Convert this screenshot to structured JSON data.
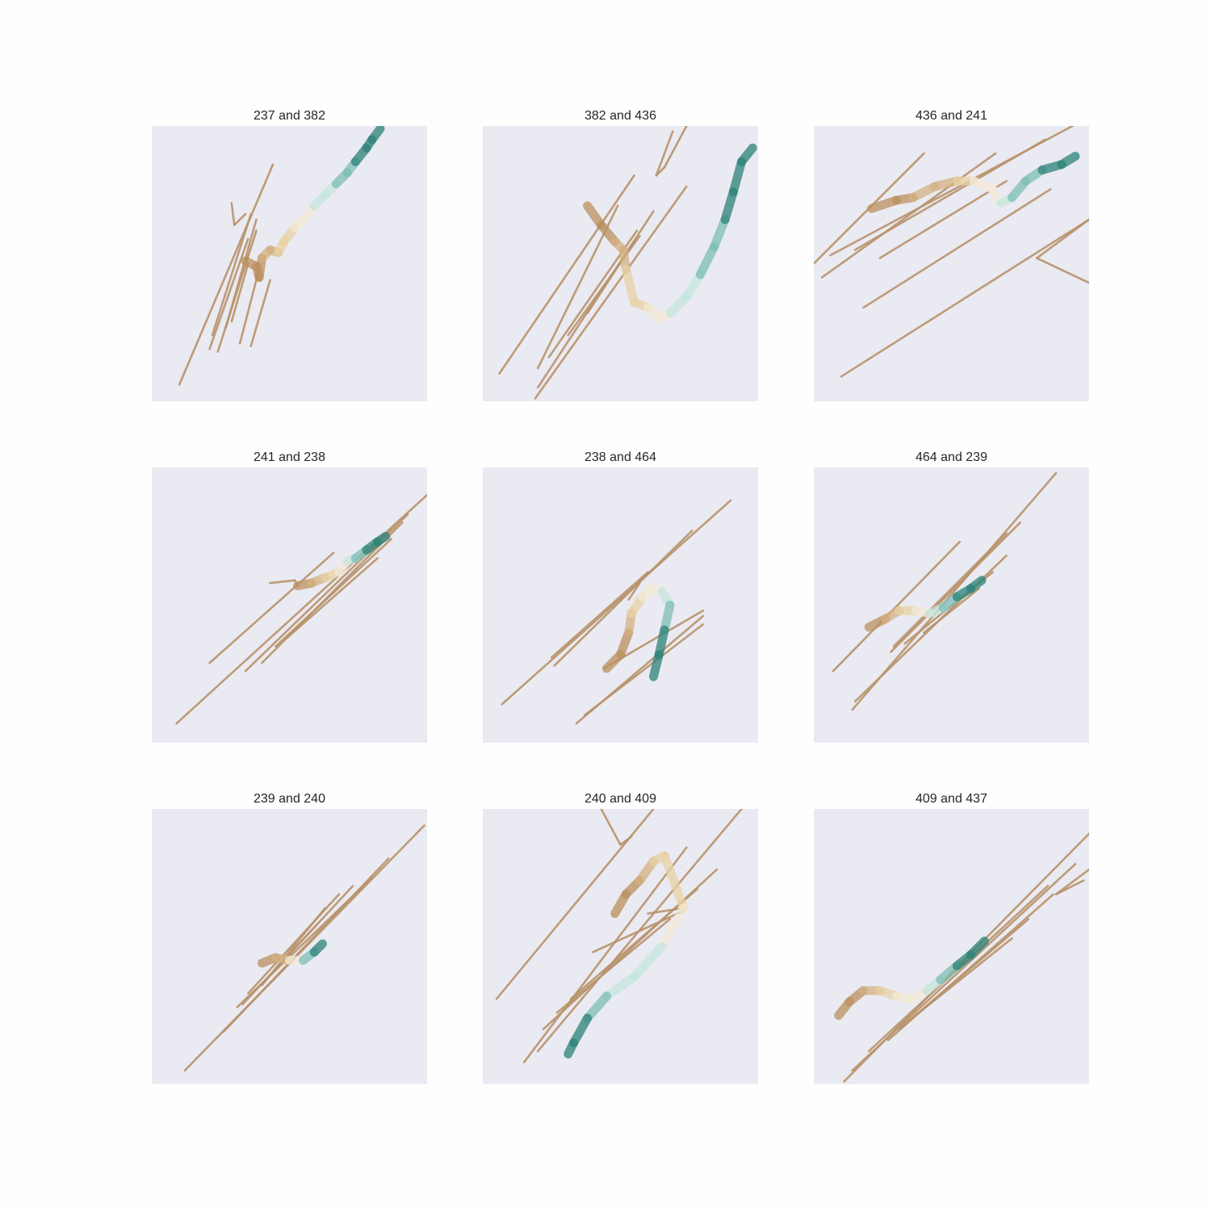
{
  "figure": {
    "background": "#fefefe",
    "panel_background": "#eaeaf2",
    "palette": {
      "outlier_line": "#b8926a",
      "brown": "#bb8f5d",
      "tan": "#d3b082",
      "sand": "#e8d1a4",
      "cream": "#f4ead8",
      "pale_teal": "#c4e6dd",
      "teal": "#7cbeb4",
      "dark_teal": "#2c8177"
    }
  },
  "chart_data": [
    {
      "type": "line",
      "title": "237 and 382",
      "grid": false,
      "xlim": [
        0,
        1
      ],
      "ylim": [
        0,
        1
      ],
      "outlier_segments": [
        [
          [
            0.1,
            0.06
          ],
          [
            0.44,
            0.86
          ]
        ],
        [
          [
            0.21,
            0.19
          ],
          [
            0.35,
            0.59
          ]
        ],
        [
          [
            0.24,
            0.18
          ],
          [
            0.38,
            0.62
          ]
        ],
        [
          [
            0.22,
            0.24
          ],
          [
            0.36,
            0.68
          ]
        ],
        [
          [
            0.27,
            0.27
          ],
          [
            0.38,
            0.66
          ]
        ],
        [
          [
            0.29,
            0.29
          ],
          [
            0.35,
            0.5
          ]
        ],
        [
          [
            0.32,
            0.21
          ],
          [
            0.39,
            0.48
          ]
        ],
        [
          [
            0.36,
            0.2
          ],
          [
            0.43,
            0.44
          ]
        ],
        [
          [
            0.29,
            0.72
          ],
          [
            0.3,
            0.64
          ]
        ],
        [
          [
            0.3,
            0.64
          ],
          [
            0.34,
            0.68
          ]
        ]
      ],
      "trajectory": [
        [
          0.34,
          0.51
        ],
        [
          0.38,
          0.49
        ],
        [
          0.39,
          0.45
        ],
        [
          0.4,
          0.52
        ],
        [
          0.43,
          0.55
        ],
        [
          0.46,
          0.54
        ],
        [
          0.48,
          0.58
        ],
        [
          0.52,
          0.63
        ],
        [
          0.55,
          0.66
        ],
        [
          0.59,
          0.71
        ],
        [
          0.63,
          0.75
        ],
        [
          0.67,
          0.79
        ],
        [
          0.71,
          0.83
        ],
        [
          0.74,
          0.87
        ],
        [
          0.78,
          0.92
        ],
        [
          0.8,
          0.95
        ],
        [
          0.83,
          0.99
        ]
      ]
    },
    {
      "type": "line",
      "title": "382 and 436",
      "grid": false,
      "xlim": [
        0,
        1
      ],
      "ylim": [
        0,
        1
      ],
      "outlier_segments": [
        [
          [
            0.06,
            0.1
          ],
          [
            0.55,
            0.82
          ]
        ],
        [
          [
            0.19,
            0.01
          ],
          [
            0.74,
            0.78
          ]
        ],
        [
          [
            0.2,
            0.05
          ],
          [
            0.62,
            0.69
          ]
        ],
        [
          [
            0.24,
            0.16
          ],
          [
            0.56,
            0.62
          ]
        ],
        [
          [
            0.31,
            0.24
          ],
          [
            0.57,
            0.6
          ]
        ],
        [
          [
            0.38,
            0.32
          ],
          [
            0.55,
            0.58
          ]
        ],
        [
          [
            0.63,
            0.82
          ],
          [
            0.69,
            0.98
          ]
        ],
        [
          [
            0.63,
            0.82
          ],
          [
            0.66,
            0.85
          ]
        ],
        [
          [
            0.66,
            0.85
          ],
          [
            0.74,
            1.0
          ]
        ],
        [
          [
            0.2,
            0.12
          ],
          [
            0.49,
            0.71
          ]
        ]
      ],
      "trajectory": [
        [
          0.38,
          0.71
        ],
        [
          0.43,
          0.64
        ],
        [
          0.48,
          0.58
        ],
        [
          0.51,
          0.55
        ],
        [
          0.52,
          0.48
        ],
        [
          0.55,
          0.36
        ],
        [
          0.6,
          0.34
        ],
        [
          0.64,
          0.3
        ],
        [
          0.68,
          0.32
        ],
        [
          0.74,
          0.38
        ],
        [
          0.79,
          0.46
        ],
        [
          0.84,
          0.56
        ],
        [
          0.88,
          0.66
        ],
        [
          0.91,
          0.76
        ],
        [
          0.94,
          0.87
        ],
        [
          0.98,
          0.92
        ]
      ]
    },
    {
      "type": "line",
      "title": "436 and 241",
      "grid": false,
      "xlim": [
        0,
        1
      ],
      "ylim": [
        0,
        1
      ],
      "outlier_segments": [
        [
          [
            0.0,
            0.5
          ],
          [
            0.4,
            0.9
          ]
        ],
        [
          [
            0.03,
            0.45
          ],
          [
            0.66,
            0.9
          ]
        ],
        [
          [
            0.1,
            0.09
          ],
          [
            1.0,
            0.66
          ]
        ],
        [
          [
            0.18,
            0.34
          ],
          [
            0.86,
            0.77
          ]
        ],
        [
          [
            0.81,
            0.52
          ],
          [
            1.0,
            0.43
          ]
        ],
        [
          [
            0.81,
            0.52
          ],
          [
            1.0,
            0.66
          ]
        ],
        [
          [
            0.15,
            0.55
          ],
          [
            0.84,
            0.95
          ]
        ],
        [
          [
            0.24,
            0.52
          ],
          [
            0.7,
            0.8
          ]
        ],
        [
          [
            0.06,
            0.53
          ],
          [
            0.94,
            1.0
          ]
        ]
      ],
      "trajectory": [
        [
          0.21,
          0.7
        ],
        [
          0.3,
          0.73
        ],
        [
          0.36,
          0.74
        ],
        [
          0.44,
          0.78
        ],
        [
          0.52,
          0.8
        ],
        [
          0.58,
          0.8
        ],
        [
          0.65,
          0.77
        ],
        [
          0.68,
          0.72
        ],
        [
          0.72,
          0.74
        ],
        [
          0.77,
          0.8
        ],
        [
          0.83,
          0.84
        ],
        [
          0.9,
          0.86
        ],
        [
          0.95,
          0.89
        ]
      ]
    },
    {
      "type": "line",
      "title": "241 and 238",
      "grid": false,
      "xlim": [
        0,
        1
      ],
      "ylim": [
        0,
        1
      ],
      "outlier_segments": [
        [
          [
            0.09,
            0.07
          ],
          [
            1.0,
            0.9
          ]
        ],
        [
          [
            0.34,
            0.26
          ],
          [
            0.93,
            0.83
          ]
        ],
        [
          [
            0.4,
            0.29
          ],
          [
            0.91,
            0.8
          ]
        ],
        [
          [
            0.45,
            0.35
          ],
          [
            0.87,
            0.74
          ]
        ],
        [
          [
            0.49,
            0.38
          ],
          [
            0.82,
            0.67
          ]
        ],
        [
          [
            0.21,
            0.29
          ],
          [
            0.66,
            0.69
          ]
        ],
        [
          [
            0.43,
            0.58
          ],
          [
            0.52,
            0.59
          ]
        ],
        [
          [
            0.52,
            0.59
          ],
          [
            0.53,
            0.57
          ]
        ]
      ],
      "trajectory": [
        [
          0.53,
          0.57
        ],
        [
          0.58,
          0.58
        ],
        [
          0.63,
          0.6
        ],
        [
          0.68,
          0.62
        ],
        [
          0.71,
          0.66
        ],
        [
          0.74,
          0.67
        ],
        [
          0.78,
          0.7
        ],
        [
          0.82,
          0.73
        ],
        [
          0.85,
          0.75
        ]
      ]
    },
    {
      "type": "line",
      "title": "238 and 464",
      "grid": false,
      "xlim": [
        0,
        1
      ],
      "ylim": [
        0,
        1
      ],
      "outlier_segments": [
        [
          [
            0.07,
            0.14
          ],
          [
            0.9,
            0.88
          ]
        ],
        [
          [
            0.26,
            0.28
          ],
          [
            0.76,
            0.77
          ]
        ],
        [
          [
            0.34,
            0.07
          ],
          [
            0.8,
            0.46
          ]
        ],
        [
          [
            0.37,
            0.1
          ],
          [
            0.8,
            0.43
          ]
        ],
        [
          [
            0.25,
            0.31
          ],
          [
            0.6,
            0.62
          ]
        ],
        [
          [
            0.44,
            0.27
          ],
          [
            0.8,
            0.48
          ]
        ],
        [
          [
            0.53,
            0.52
          ],
          [
            0.57,
            0.58
          ]
        ]
      ],
      "trajectory": [
        [
          0.45,
          0.27
        ],
        [
          0.5,
          0.32
        ],
        [
          0.53,
          0.4
        ],
        [
          0.54,
          0.47
        ],
        [
          0.58,
          0.53
        ],
        [
          0.61,
          0.56
        ],
        [
          0.65,
          0.55
        ],
        [
          0.68,
          0.5
        ],
        [
          0.66,
          0.41
        ],
        [
          0.64,
          0.32
        ],
        [
          0.62,
          0.24
        ]
      ]
    },
    {
      "type": "line",
      "title": "464 and 239",
      "grid": false,
      "xlim": [
        0,
        1
      ],
      "ylim": [
        0,
        1
      ],
      "outlier_segments": [
        [
          [
            0.07,
            0.26
          ],
          [
            0.53,
            0.73
          ]
        ],
        [
          [
            0.14,
            0.12
          ],
          [
            0.88,
            0.98
          ]
        ],
        [
          [
            0.28,
            0.33
          ],
          [
            0.75,
            0.8
          ]
        ],
        [
          [
            0.29,
            0.35
          ],
          [
            0.7,
            0.76
          ]
        ],
        [
          [
            0.15,
            0.15
          ],
          [
            0.7,
            0.68
          ]
        ],
        [
          [
            0.33,
            0.36
          ],
          [
            0.65,
            0.62
          ]
        ],
        [
          [
            0.4,
            0.4
          ],
          [
            0.6,
            0.56
          ]
        ]
      ],
      "trajectory": [
        [
          0.2,
          0.42
        ],
        [
          0.26,
          0.45
        ],
        [
          0.31,
          0.48
        ],
        [
          0.37,
          0.48
        ],
        [
          0.42,
          0.47
        ],
        [
          0.47,
          0.49
        ],
        [
          0.52,
          0.53
        ],
        [
          0.57,
          0.56
        ],
        [
          0.61,
          0.59
        ]
      ]
    },
    {
      "type": "line",
      "title": "239 and 240",
      "grid": false,
      "xlim": [
        0,
        1
      ],
      "ylim": [
        0,
        1
      ],
      "outlier_segments": [
        [
          [
            0.12,
            0.05
          ],
          [
            0.99,
            0.94
          ]
        ],
        [
          [
            0.26,
            0.19
          ],
          [
            0.86,
            0.82
          ]
        ],
        [
          [
            0.31,
            0.28
          ],
          [
            0.8,
            0.75
          ]
        ],
        [
          [
            0.33,
            0.29
          ],
          [
            0.73,
            0.72
          ]
        ],
        [
          [
            0.35,
            0.33
          ],
          [
            0.68,
            0.69
          ]
        ],
        [
          [
            0.4,
            0.36
          ],
          [
            0.63,
            0.64
          ]
        ],
        [
          [
            0.45,
            0.42
          ],
          [
            0.6,
            0.58
          ]
        ]
      ],
      "trajectory": [
        [
          0.4,
          0.44
        ],
        [
          0.45,
          0.46
        ],
        [
          0.5,
          0.45
        ],
        [
          0.55,
          0.45
        ],
        [
          0.59,
          0.48
        ],
        [
          0.62,
          0.51
        ]
      ]
    },
    {
      "type": "line",
      "title": "240 and 409",
      "grid": false,
      "xlim": [
        0,
        1
      ],
      "ylim": [
        0,
        1
      ],
      "outlier_segments": [
        [
          [
            0.05,
            0.31
          ],
          [
            0.62,
            1.0
          ]
        ],
        [
          [
            0.2,
            0.12
          ],
          [
            0.94,
            1.0
          ]
        ],
        [
          [
            0.15,
            0.08
          ],
          [
            0.74,
            0.86
          ]
        ],
        [
          [
            0.22,
            0.2
          ],
          [
            0.85,
            0.78
          ]
        ],
        [
          [
            0.27,
            0.26
          ],
          [
            0.68,
            0.6
          ]
        ],
        [
          [
            0.32,
            0.31
          ],
          [
            0.78,
            0.71
          ]
        ],
        [
          [
            0.43,
            1.0
          ],
          [
            0.5,
            0.87
          ]
        ],
        [
          [
            0.5,
            0.87
          ],
          [
            0.54,
            0.9
          ]
        ],
        [
          [
            0.4,
            0.48
          ],
          [
            0.73,
            0.63
          ]
        ],
        [
          [
            0.6,
            0.62
          ],
          [
            0.73,
            0.64
          ]
        ]
      ],
      "trajectory": [
        [
          0.48,
          0.62
        ],
        [
          0.52,
          0.69
        ],
        [
          0.57,
          0.74
        ],
        [
          0.62,
          0.81
        ],
        [
          0.66,
          0.83
        ],
        [
          0.73,
          0.64
        ],
        [
          0.65,
          0.5
        ],
        [
          0.55,
          0.39
        ],
        [
          0.45,
          0.32
        ],
        [
          0.38,
          0.24
        ],
        [
          0.33,
          0.15
        ],
        [
          0.31,
          0.11
        ]
      ]
    },
    {
      "type": "line",
      "title": "409 and 437",
      "grid": false,
      "xlim": [
        0,
        1
      ],
      "ylim": [
        0,
        1
      ],
      "outlier_segments": [
        [
          [
            0.11,
            0.01
          ],
          [
            1.0,
            0.91
          ]
        ],
        [
          [
            0.14,
            0.05
          ],
          [
            0.95,
            0.8
          ]
        ],
        [
          [
            0.2,
            0.12
          ],
          [
            0.85,
            0.72
          ]
        ],
        [
          [
            0.27,
            0.16
          ],
          [
            0.87,
            0.69
          ]
        ],
        [
          [
            0.31,
            0.2
          ],
          [
            0.78,
            0.6
          ]
        ],
        [
          [
            0.37,
            0.25
          ],
          [
            0.72,
            0.53
          ]
        ],
        [
          [
            0.88,
            0.69
          ],
          [
            0.98,
            0.74
          ]
        ],
        [
          [
            0.88,
            0.69
          ],
          [
            1.0,
            0.78
          ]
        ]
      ],
      "trajectory": [
        [
          0.09,
          0.25
        ],
        [
          0.13,
          0.3
        ],
        [
          0.18,
          0.34
        ],
        [
          0.24,
          0.34
        ],
        [
          0.3,
          0.32
        ],
        [
          0.35,
          0.31
        ],
        [
          0.41,
          0.34
        ],
        [
          0.46,
          0.38
        ],
        [
          0.52,
          0.43
        ],
        [
          0.57,
          0.47
        ],
        [
          0.62,
          0.52
        ]
      ]
    }
  ]
}
